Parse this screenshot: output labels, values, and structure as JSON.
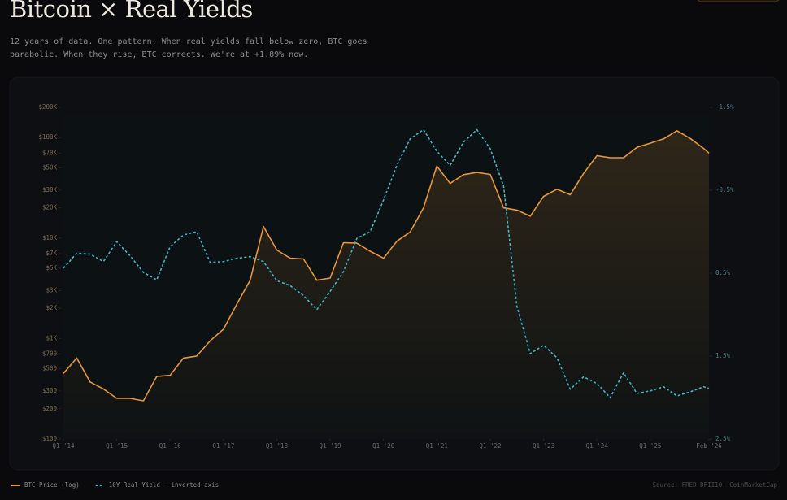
{
  "chart_data": {
    "type": "line",
    "title": "Bitcoin × Real Yields",
    "subtitle": "12 years of data. One pattern. When real yields fall below zero, BTC goes parabolic. When they rise, BTC corrects. We're at +1.89% now.",
    "source": "Source: FRED DFII10, CoinMarketCap",
    "x": [
      2014,
      2014.25,
      2014.5,
      2014.75,
      2015,
      2015.25,
      2015.5,
      2015.75,
      2016,
      2016.25,
      2016.5,
      2016.75,
      2017,
      2017.25,
      2017.5,
      2017.75,
      2018,
      2018.25,
      2018.5,
      2018.75,
      2019,
      2019.25,
      2019.5,
      2019.75,
      2020,
      2020.25,
      2020.5,
      2020.75,
      2021,
      2021.25,
      2021.5,
      2021.75,
      2022,
      2022.25,
      2022.5,
      2022.75,
      2023,
      2023.25,
      2023.5,
      2023.75,
      2024,
      2024.25,
      2024.5,
      2024.75,
      2025,
      2025.25,
      2025.5,
      2025.75,
      2026,
      2026.1
    ],
    "series": [
      {
        "name": "BTC Price (log)",
        "color": "#e8963a",
        "axis": "y",
        "values": [
          450,
          640,
          370,
          315,
          254,
          254,
          240,
          420,
          430,
          640,
          670,
          950,
          1240,
          2200,
          3800,
          13000,
          7600,
          6300,
          6200,
          3800,
          4000,
          9000,
          8900,
          7400,
          6300,
          9300,
          11500,
          20000,
          52000,
          35000,
          42800,
          45000,
          43000,
          20000,
          19000,
          16500,
          26000,
          30600,
          27000,
          44000,
          66000,
          63000,
          63000,
          80000,
          88000,
          97000,
          117000,
          98000,
          78000,
          70000
        ]
      },
      {
        "name": "10Y Real Yield — inverted axis",
        "color": "#3fb6c6",
        "axis": "y2",
        "line_style": "dashed",
        "values": [
          0.44,
          0.26,
          0.27,
          0.36,
          0.12,
          0.29,
          0.49,
          0.58,
          0.18,
          0.04,
          0.0,
          0.37,
          0.36,
          0.32,
          0.3,
          0.36,
          0.59,
          0.65,
          0.77,
          0.94,
          0.72,
          0.48,
          0.08,
          0.0,
          -0.38,
          -0.8,
          -1.12,
          -1.23,
          -0.97,
          -0.8,
          -1.08,
          -1.23,
          -1.0,
          -0.55,
          0.9,
          1.47,
          1.37,
          1.52,
          1.9,
          1.75,
          1.83,
          2.0,
          1.7,
          1.95,
          1.92,
          1.87,
          1.98,
          1.93,
          1.87,
          1.89
        ]
      }
    ],
    "xlim": [
      2014,
      2026.1
    ],
    "xticks": [
      {
        "value": 2014,
        "label": "Q1 '14"
      },
      {
        "value": 2015,
        "label": "Q1 '15"
      },
      {
        "value": 2016,
        "label": "Q1 '16"
      },
      {
        "value": 2017,
        "label": "Q1 '17"
      },
      {
        "value": 2018,
        "label": "Q1 '18"
      },
      {
        "value": 2019,
        "label": "Q1 '19"
      },
      {
        "value": 2020,
        "label": "Q1 '20"
      },
      {
        "value": 2021,
        "label": "Q1 '21"
      },
      {
        "value": 2022,
        "label": "Q1 '22"
      },
      {
        "value": 2023,
        "label": "Q1 '23"
      },
      {
        "value": 2024,
        "label": "Q1 '24"
      },
      {
        "value": 2025,
        "label": "Q1 '25"
      },
      {
        "value": 2026.1,
        "label": "Feb '26"
      }
    ],
    "ylim": [
      100,
      200000
    ],
    "ylog": true,
    "yticks": [
      {
        "value": 200000,
        "label": "$200K"
      },
      {
        "value": 100000,
        "label": "$100K"
      },
      {
        "value": 70000,
        "label": "$70K"
      },
      {
        "value": 50000,
        "label": "$50K"
      },
      {
        "value": 30000,
        "label": "$30K"
      },
      {
        "value": 20000,
        "label": "$20K"
      },
      {
        "value": 10000,
        "label": "$10K"
      },
      {
        "value": 7000,
        "label": "$7K"
      },
      {
        "value": 5000,
        "label": "$5K"
      },
      {
        "value": 3000,
        "label": "$3K"
      },
      {
        "value": 2000,
        "label": "$2K"
      },
      {
        "value": 1000,
        "label": "$1K"
      },
      {
        "value": 700,
        "label": "$700"
      },
      {
        "value": 500,
        "label": "$500"
      },
      {
        "value": 300,
        "label": "$300"
      },
      {
        "value": 200,
        "label": "$200"
      },
      {
        "value": 100,
        "label": "$100"
      }
    ],
    "y2lim": [
      -1.5,
      2.5
    ],
    "y2_inverted": true,
    "y2ticks": [
      {
        "value": -1.5,
        "label": "-1.5%"
      },
      {
        "value": -0.5,
        "label": "-0.5%"
      },
      {
        "value": 0.5,
        "label": "0.5%"
      },
      {
        "value": 1.5,
        "label": "1.5%"
      },
      {
        "value": 2.5,
        "label": "2.5%"
      }
    ],
    "legend": "bottom-left"
  }
}
